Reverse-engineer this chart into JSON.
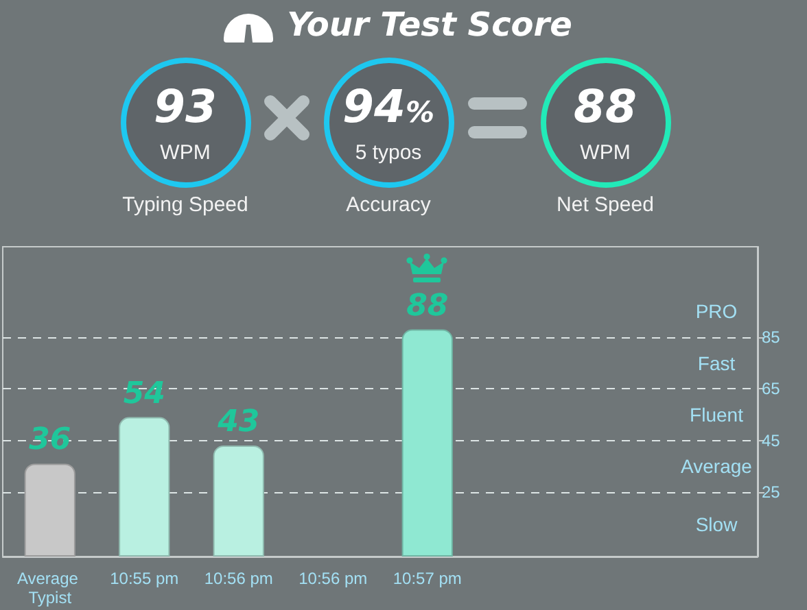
{
  "chart_data": [
    {
      "type": "other",
      "title": "Your Test Score",
      "categories": [
        "Typing Speed",
        "Accuracy",
        "Net Speed"
      ],
      "value_labels": [
        "93",
        "94%",
        "88"
      ],
      "annotations": [
        "WPM",
        "5 typos",
        "WPM"
      ],
      "colors": [
        "#1ec8f0",
        "#1ec8f0",
        "#22eab8"
      ]
    },
    {
      "type": "bar",
      "categories": [
        "Average Typist",
        "10:55 pm",
        "10:56 pm",
        "10:56 pm",
        "10:57 pm",
        null,
        null,
        null
      ],
      "values": [
        36,
        54,
        43,
        null,
        88,
        null,
        null,
        null
      ],
      "colors": [
        "#c8c8c8",
        "#b9f0e1",
        "#b9f0e1",
        "#b9f0e1",
        "#8fe8d2",
        "#b9f0e1",
        "#b9f0e1",
        "#b9f0e1"
      ],
      "data_labels": true,
      "ylim": [
        0,
        120
      ],
      "yticks": [
        25,
        45,
        65,
        85
      ],
      "grid": "y",
      "annotations": [
        "PRO",
        "Fast",
        "Fluent",
        "Average",
        "Slow"
      ]
    }
  ]
}
